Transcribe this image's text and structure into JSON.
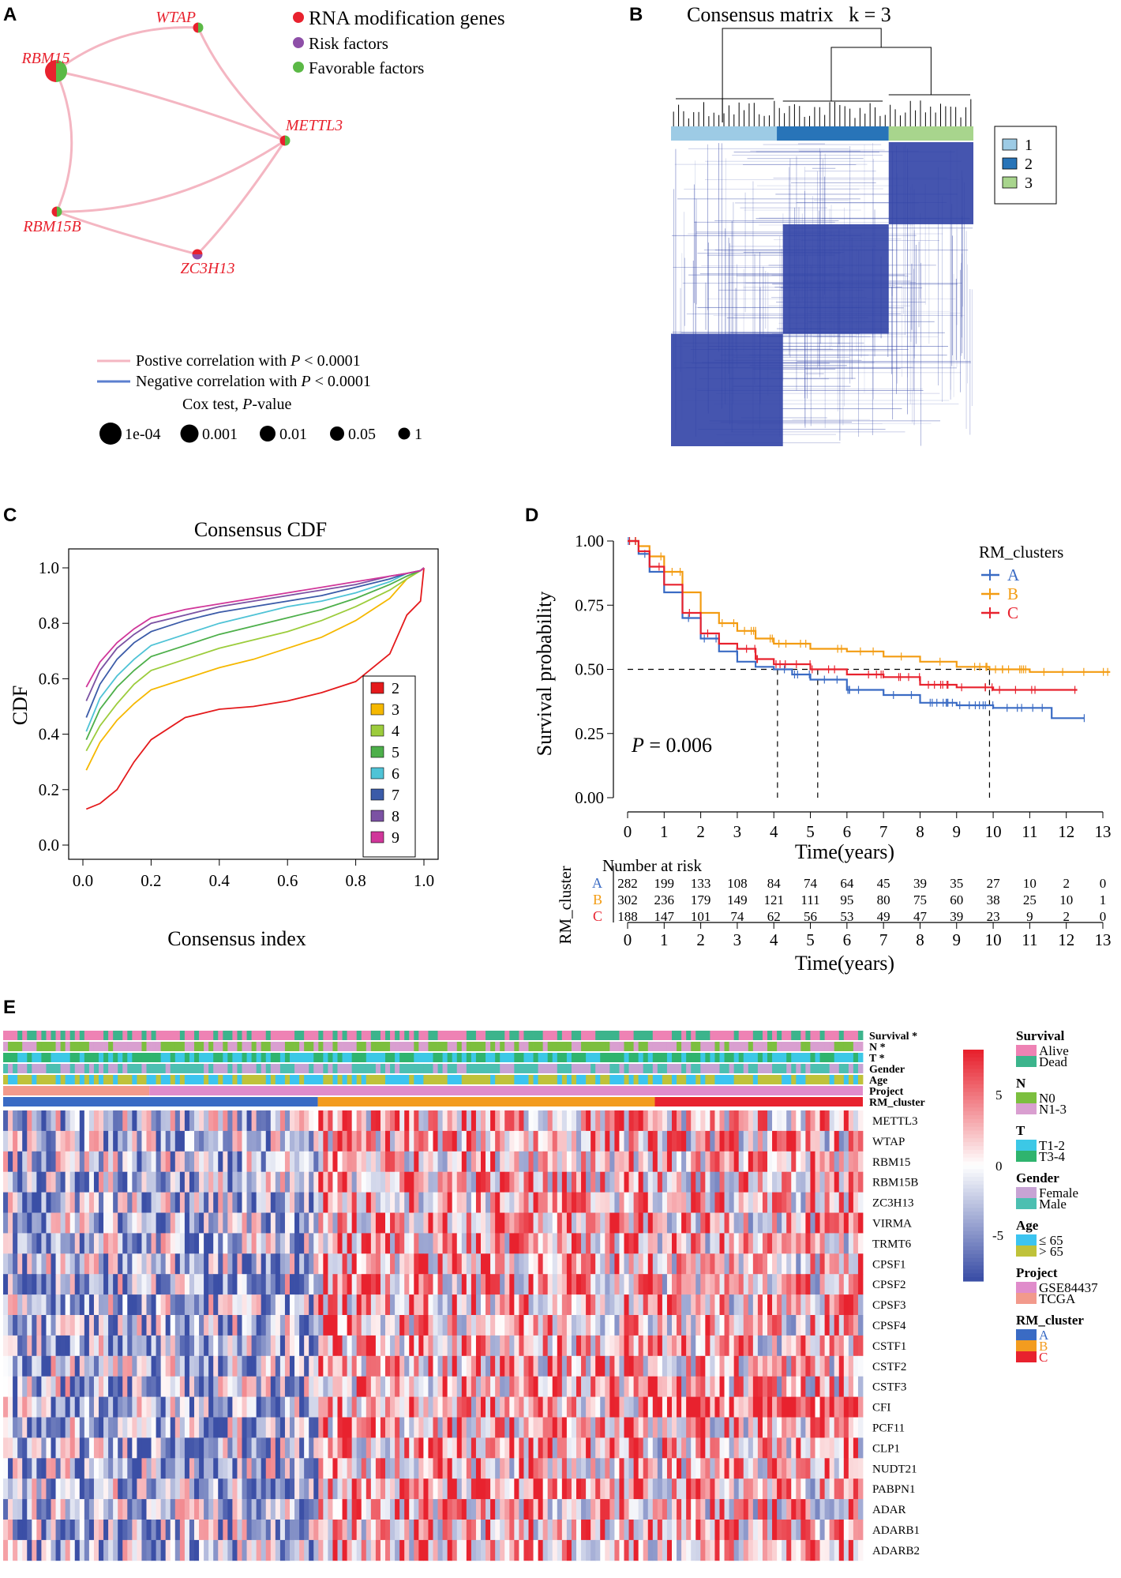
{
  "panel_labels": [
    "A",
    "B",
    "C",
    "D",
    "E"
  ],
  "chart_data": [
    {
      "panel": "A",
      "type": "network",
      "nodes": [
        {
          "name": "WTAP",
          "risk": "favorable",
          "p": 0.05
        },
        {
          "name": "RBM15",
          "risk": "mixed",
          "p": 0.0001
        },
        {
          "name": "METTL3",
          "risk": "favorable",
          "p": 0.05
        },
        {
          "name": "RBM15B",
          "risk": "mixed",
          "p": 0.05
        },
        {
          "name": "ZC3H13",
          "risk": "risk",
          "p": 0.05
        }
      ],
      "edges": [
        [
          "WTAP",
          "RBM15"
        ],
        [
          "WTAP",
          "METTL3"
        ],
        [
          "RBM15",
          "METTL3"
        ],
        [
          "RBM15",
          "RBM15B"
        ],
        [
          "RBM15B",
          "METTL3"
        ],
        [
          "RBM15B",
          "ZC3H13"
        ],
        [
          "ZC3H13",
          "METTL3"
        ]
      ],
      "legend": {
        "types": [
          "RNA modification genes",
          "Risk factors",
          "Favorable factors"
        ],
        "pos_line": "Postive correlation with",
        "neg_line": "Negative correlation with",
        "p_thresh": "< 0.0001",
        "p_letter": "P",
        "cox_prefix": "Cox test, ",
        "cox_suffix": "-value",
        "size_labels": [
          "1e-04",
          "0.001",
          "0.01",
          "0.05",
          "1"
        ]
      },
      "colors": {
        "rna": "#e8222e",
        "risk": "#8e4fa8",
        "favorable": "#5bb946",
        "pos": "#f4b6c2",
        "neg": "#5b7fcf"
      }
    },
    {
      "panel": "B",
      "type": "heatmap",
      "title": "Consensus matrix   k = 3",
      "legend": [
        "1",
        "2",
        "3"
      ],
      "cluster_fractions": [
        0.35,
        0.37,
        0.28
      ],
      "colors": [
        "#9dcbe5",
        "#2874b8",
        "#a8d58d"
      ],
      "fill_color": "#3547a8"
    },
    {
      "panel": "C",
      "type": "line",
      "title": "Consensus CDF",
      "xlabel": "Consensus index",
      "ylabel": "CDF",
      "xlim": [
        0,
        1
      ],
      "ylim": [
        0,
        1
      ],
      "xticks": [
        "0.0",
        "0.2",
        "0.4",
        "0.6",
        "0.8",
        "1.0"
      ],
      "yticks": [
        "0.0",
        "0.2",
        "0.4",
        "0.6",
        "0.8",
        "1.0"
      ],
      "x": [
        0.01,
        0.05,
        0.1,
        0.15,
        0.2,
        0.3,
        0.4,
        0.5,
        0.6,
        0.7,
        0.8,
        0.9,
        0.95,
        0.99,
        1.0
      ],
      "series": [
        {
          "name": "2",
          "color": "#e41a1c",
          "values": [
            0.13,
            0.15,
            0.2,
            0.3,
            0.38,
            0.46,
            0.49,
            0.5,
            0.52,
            0.55,
            0.59,
            0.69,
            0.83,
            0.88,
            1.0
          ]
        },
        {
          "name": "3",
          "color": "#f5b800",
          "values": [
            0.27,
            0.37,
            0.45,
            0.51,
            0.56,
            0.6,
            0.64,
            0.67,
            0.71,
            0.75,
            0.81,
            0.89,
            0.96,
            0.99,
            1.0
          ]
        },
        {
          "name": "4",
          "color": "#9ccc3c",
          "values": [
            0.34,
            0.43,
            0.51,
            0.58,
            0.63,
            0.67,
            0.71,
            0.74,
            0.77,
            0.81,
            0.86,
            0.92,
            0.96,
            0.99,
            1.0
          ]
        },
        {
          "name": "5",
          "color": "#4daf4a",
          "values": [
            0.38,
            0.49,
            0.57,
            0.63,
            0.68,
            0.72,
            0.76,
            0.79,
            0.82,
            0.85,
            0.89,
            0.94,
            0.97,
            0.99,
            1.0
          ]
        },
        {
          "name": "6",
          "color": "#4fc3d6",
          "values": [
            0.41,
            0.53,
            0.61,
            0.67,
            0.72,
            0.76,
            0.8,
            0.83,
            0.86,
            0.88,
            0.91,
            0.95,
            0.98,
            0.99,
            1.0
          ]
        },
        {
          "name": "7",
          "color": "#3b5ba8",
          "values": [
            0.46,
            0.58,
            0.67,
            0.73,
            0.77,
            0.81,
            0.84,
            0.86,
            0.88,
            0.9,
            0.93,
            0.96,
            0.98,
            0.99,
            1.0
          ]
        },
        {
          "name": "8",
          "color": "#7b52a3",
          "values": [
            0.52,
            0.63,
            0.71,
            0.76,
            0.8,
            0.83,
            0.86,
            0.88,
            0.9,
            0.92,
            0.94,
            0.97,
            0.98,
            0.99,
            1.0
          ]
        },
        {
          "name": "9",
          "color": "#d0379a",
          "values": [
            0.57,
            0.66,
            0.73,
            0.78,
            0.82,
            0.85,
            0.87,
            0.89,
            0.91,
            0.93,
            0.95,
            0.97,
            0.98,
            0.99,
            1.0
          ]
        }
      ]
    },
    {
      "panel": "D",
      "type": "line",
      "subtype": "kaplan-meier",
      "xlabel": "Time(years)",
      "ylabel": "Survival probability",
      "xlim": [
        0,
        13
      ],
      "ylim": [
        0,
        1
      ],
      "xticks": [
        "0",
        "1",
        "2",
        "3",
        "4",
        "5",
        "6",
        "7",
        "8",
        "9",
        "10",
        "11",
        "12",
        "13"
      ],
      "yticks": [
        "0.00",
        "0.25",
        "0.50",
        "0.75",
        "1.00"
      ],
      "legend_title": "RM_clusters",
      "p_letter": "P",
      "p_text": "= 0.006",
      "medians": [
        4.1,
        5.2,
        9.9
      ],
      "series": [
        {
          "name": "A",
          "color": "#3a6bc4",
          "x": [
            0,
            0.3,
            0.6,
            1.0,
            1.5,
            2.0,
            2.5,
            3.0,
            3.5,
            4.0,
            4.5,
            5.0,
            6.0,
            7.0,
            8.0,
            9.0,
            10.0,
            11.0,
            11.6,
            12.5
          ],
          "values": [
            1.0,
            0.95,
            0.88,
            0.8,
            0.7,
            0.62,
            0.57,
            0.53,
            0.51,
            0.5,
            0.48,
            0.46,
            0.42,
            0.4,
            0.37,
            0.36,
            0.35,
            0.35,
            0.31,
            0.31
          ]
        },
        {
          "name": "B",
          "color": "#f39c12",
          "x": [
            0,
            0.3,
            0.6,
            1.0,
            1.5,
            2.0,
            2.5,
            3.0,
            3.5,
            4.0,
            5.0,
            6.0,
            7.0,
            8.0,
            9.0,
            9.9,
            11.0,
            12.0,
            13.2
          ],
          "values": [
            1.0,
            0.98,
            0.94,
            0.88,
            0.8,
            0.72,
            0.68,
            0.65,
            0.62,
            0.6,
            0.58,
            0.57,
            0.55,
            0.53,
            0.51,
            0.5,
            0.49,
            0.49,
            0.49
          ]
        },
        {
          "name": "C",
          "color": "#e8222e",
          "x": [
            0,
            0.3,
            0.6,
            1.0,
            1.5,
            2.0,
            2.5,
            3.0,
            3.5,
            4.0,
            5.0,
            6.0,
            7.0,
            8.0,
            9.0,
            10.0,
            11.0,
            12.3
          ],
          "values": [
            1.0,
            0.96,
            0.9,
            0.83,
            0.72,
            0.64,
            0.6,
            0.58,
            0.54,
            0.52,
            0.5,
            0.48,
            0.47,
            0.44,
            0.43,
            0.42,
            0.42,
            0.42
          ]
        }
      ],
      "risk_table": {
        "title": "Number at risk",
        "ylabel": "RM_cluster",
        "rows": [
          {
            "name": "A",
            "values": [
              "282",
              "199",
              "133",
              "108",
              "84",
              "74",
              "64",
              "45",
              "39",
              "35",
              "27",
              "10",
              "2",
              "0"
            ]
          },
          {
            "name": "B",
            "values": [
              "302",
              "236",
              "179",
              "149",
              "121",
              "111",
              "95",
              "80",
              "75",
              "60",
              "38",
              "25",
              "10",
              "1"
            ]
          },
          {
            "name": "C",
            "values": [
              "188",
              "147",
              "101",
              "74",
              "62",
              "56",
              "53",
              "49",
              "47",
              "39",
              "23",
              "9",
              "2",
              "0"
            ]
          }
        ]
      }
    },
    {
      "panel": "E",
      "type": "heatmap",
      "annotation_rows": [
        "Survival *",
        "N *",
        "T *",
        "Gender",
        "Age",
        "Project",
        "RM_cluster"
      ],
      "genes": [
        "METTL3",
        "WTAP",
        "RBM15",
        "RBM15B",
        "ZC3H13",
        "VIRMA",
        "TRMT6",
        "CPSF1",
        "CPSF2",
        "CPSF3",
        "CPSF4",
        "CSTF1",
        "CSTF2",
        "CSTF3",
        "CFI",
        "PCF11",
        "CLP1",
        "NUDT21",
        "PABPN1",
        "ADAR",
        "ADARB1",
        "ADARB2"
      ],
      "cluster_fractions": [
        0.366,
        0.392,
        0.242
      ],
      "colorbar": {
        "max": "5",
        "mid": "0",
        "min": "-5",
        "high_color": "#e8222e",
        "low_color": "#3b4fa6"
      },
      "legend": [
        {
          "title": "Survival",
          "items": [
            {
              "label": "Alive",
              "color": "#ee82b4"
            },
            {
              "label": "Dead",
              "color": "#3cb48c"
            }
          ]
        },
        {
          "title": "N",
          "items": [
            {
              "label": "N0",
              "color": "#7cbf3f"
            },
            {
              "label": "N1-3",
              "color": "#d99fd0"
            }
          ]
        },
        {
          "title": "T",
          "items": [
            {
              "label": "T1-2",
              "color": "#3cc8e6"
            },
            {
              "label": "T3-4",
              "color": "#2fb46e"
            }
          ]
        },
        {
          "title": "Gender",
          "items": [
            {
              "label": "Female",
              "color": "#c7a3d4"
            },
            {
              "label": "Male",
              "color": "#4cbfb1"
            }
          ]
        },
        {
          "title": "Age",
          "items": [
            {
              "label": "≤ 65",
              "color": "#3cc4f0"
            },
            {
              "label": "> 65",
              "color": "#bfc23a"
            }
          ]
        },
        {
          "title": "Project",
          "items": [
            {
              "label": "GSE84437",
              "color": "#e08ccb"
            },
            {
              "label": "TCGA",
              "color": "#f29a8c"
            }
          ]
        },
        {
          "title": "RM_cluster",
          "items": [
            {
              "label": "A",
              "color": "#3a6bc4"
            },
            {
              "label": "B",
              "color": "#f39c1f"
            },
            {
              "label": "C",
              "color": "#e8222e"
            }
          ]
        }
      ]
    }
  ]
}
